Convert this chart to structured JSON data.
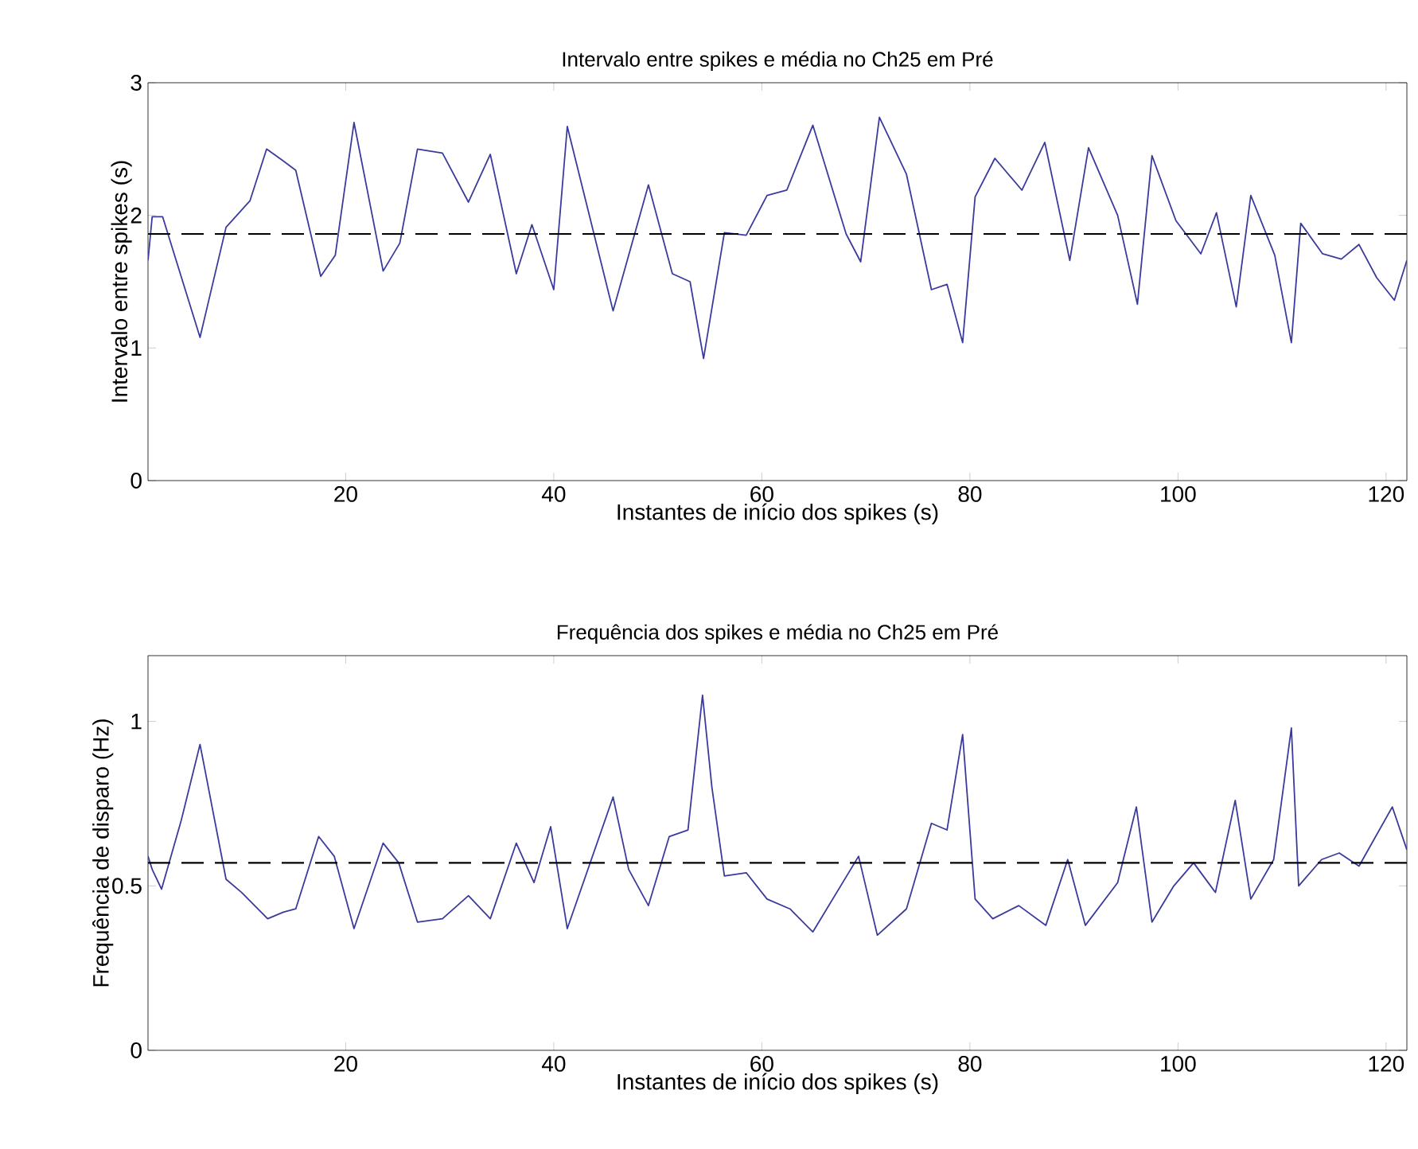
{
  "chart_data": [
    {
      "type": "line",
      "title": "Intervalo entre spikes e média no Ch25 em Pré",
      "xlabel": "Instantes de início dos spikes (s)",
      "ylabel": "Intervalo entre spikes (s)",
      "xlim": [
        1,
        122
      ],
      "ylim": [
        0,
        3
      ],
      "xticks": [
        20,
        40,
        60,
        80,
        100,
        120
      ],
      "yticks": [
        0,
        1,
        2,
        3
      ],
      "grid": false,
      "marker": "none",
      "line_style": "solid",
      "series": [
        {
          "color": "#3b3b9e",
          "x": [
            1,
            1.4,
            2.4,
            6,
            8.5,
            10.8,
            12.4,
            14,
            15.2,
            17.6,
            19,
            20.8,
            23.6,
            25.2,
            26.9,
            29.3,
            31.8,
            33.9,
            36.4,
            37.9,
            40,
            41.3,
            45.7,
            49.1,
            51.4,
            53.1,
            54.4,
            56.4,
            58.5,
            60.5,
            62.4,
            64.9,
            68.1,
            69.5,
            71.3,
            73.9,
            76.3,
            77.8,
            79.3,
            80.5,
            82.4,
            85,
            87.2,
            89.6,
            91.4,
            94.2,
            96.1,
            97.5,
            99.8,
            102.2,
            103.7,
            105.6,
            107,
            109.3,
            110.9,
            111.8,
            113.9,
            115.7,
            117.4,
            119.1,
            120.8,
            122
          ],
          "values": [
            1.66,
            1.99,
            1.99,
            1.08,
            1.91,
            2.11,
            2.5,
            2.41,
            2.34,
            1.54,
            1.7,
            2.7,
            1.58,
            1.79,
            2.5,
            2.47,
            2.1,
            2.46,
            1.56,
            1.93,
            1.44,
            2.67,
            1.28,
            2.23,
            1.56,
            1.5,
            0.92,
            1.87,
            1.85,
            2.15,
            2.19,
            2.68,
            1.86,
            1.65,
            2.74,
            2.31,
            1.44,
            1.48,
            1.04,
            2.14,
            2.43,
            2.19,
            2.55,
            1.66,
            2.51,
            2.0,
            1.33,
            2.45,
            1.96,
            1.71,
            2.02,
            1.31,
            2.15,
            1.7,
            1.04,
            1.94,
            1.71,
            1.67,
            1.78,
            1.53,
            1.36,
            1.66
          ]
        }
      ],
      "ref_lines": [
        {
          "axis": "y",
          "value": 1.86,
          "color": "#000000",
          "line_style": "dashed"
        }
      ]
    },
    {
      "type": "line",
      "title": "Frequência dos spikes e média no Ch25 em Pré",
      "xlabel": "Instantes de início dos spikes (s)",
      "ylabel": "Frequência de disparo (Hz)",
      "xlim": [
        1,
        122
      ],
      "ylim": [
        0,
        1.2
      ],
      "xticks": [
        20,
        40,
        60,
        80,
        100,
        120
      ],
      "yticks": [
        0,
        0.5,
        1
      ],
      "grid": false,
      "marker": "none",
      "line_style": "solid",
      "series": [
        {
          "color": "#3b3b9e",
          "x": [
            1,
            1.4,
            2.3,
            4.2,
            6,
            8.5,
            10,
            12.5,
            14,
            15.2,
            17.4,
            18.9,
            20.8,
            23.6,
            25.1,
            26.9,
            29.3,
            31.8,
            33.9,
            36.4,
            38.1,
            39.7,
            41.3,
            45.7,
            47.2,
            49.1,
            51.1,
            52.9,
            54.3,
            55.2,
            56.4,
            58.5,
            60.5,
            62.7,
            64.9,
            69.3,
            71.1,
            73.9,
            76.3,
            77.8,
            79.3,
            80.5,
            82.2,
            84.7,
            87.3,
            89.4,
            91.1,
            94.2,
            96,
            97.5,
            99.6,
            101.5,
            103.6,
            105.5,
            107,
            109.2,
            110.9,
            111.6,
            113.8,
            115.5,
            117.4,
            120.6,
            122
          ],
          "values": [
            0.59,
            0.55,
            0.49,
            0.7,
            0.93,
            0.52,
            0.48,
            0.4,
            0.42,
            0.43,
            0.65,
            0.59,
            0.37,
            0.63,
            0.57,
            0.39,
            0.4,
            0.47,
            0.4,
            0.63,
            0.51,
            0.68,
            0.37,
            0.77,
            0.55,
            0.44,
            0.65,
            0.67,
            1.08,
            0.8,
            0.53,
            0.54,
            0.46,
            0.43,
            0.36,
            0.59,
            0.35,
            0.43,
            0.69,
            0.67,
            0.96,
            0.46,
            0.4,
            0.44,
            0.38,
            0.58,
            0.38,
            0.51,
            0.74,
            0.39,
            0.5,
            0.57,
            0.48,
            0.76,
            0.46,
            0.58,
            0.98,
            0.5,
            0.58,
            0.6,
            0.56,
            0.74,
            0.61
          ]
        }
      ],
      "ref_lines": [
        {
          "axis": "y",
          "value": 0.57,
          "color": "#000000",
          "line_style": "dashed"
        }
      ]
    }
  ]
}
